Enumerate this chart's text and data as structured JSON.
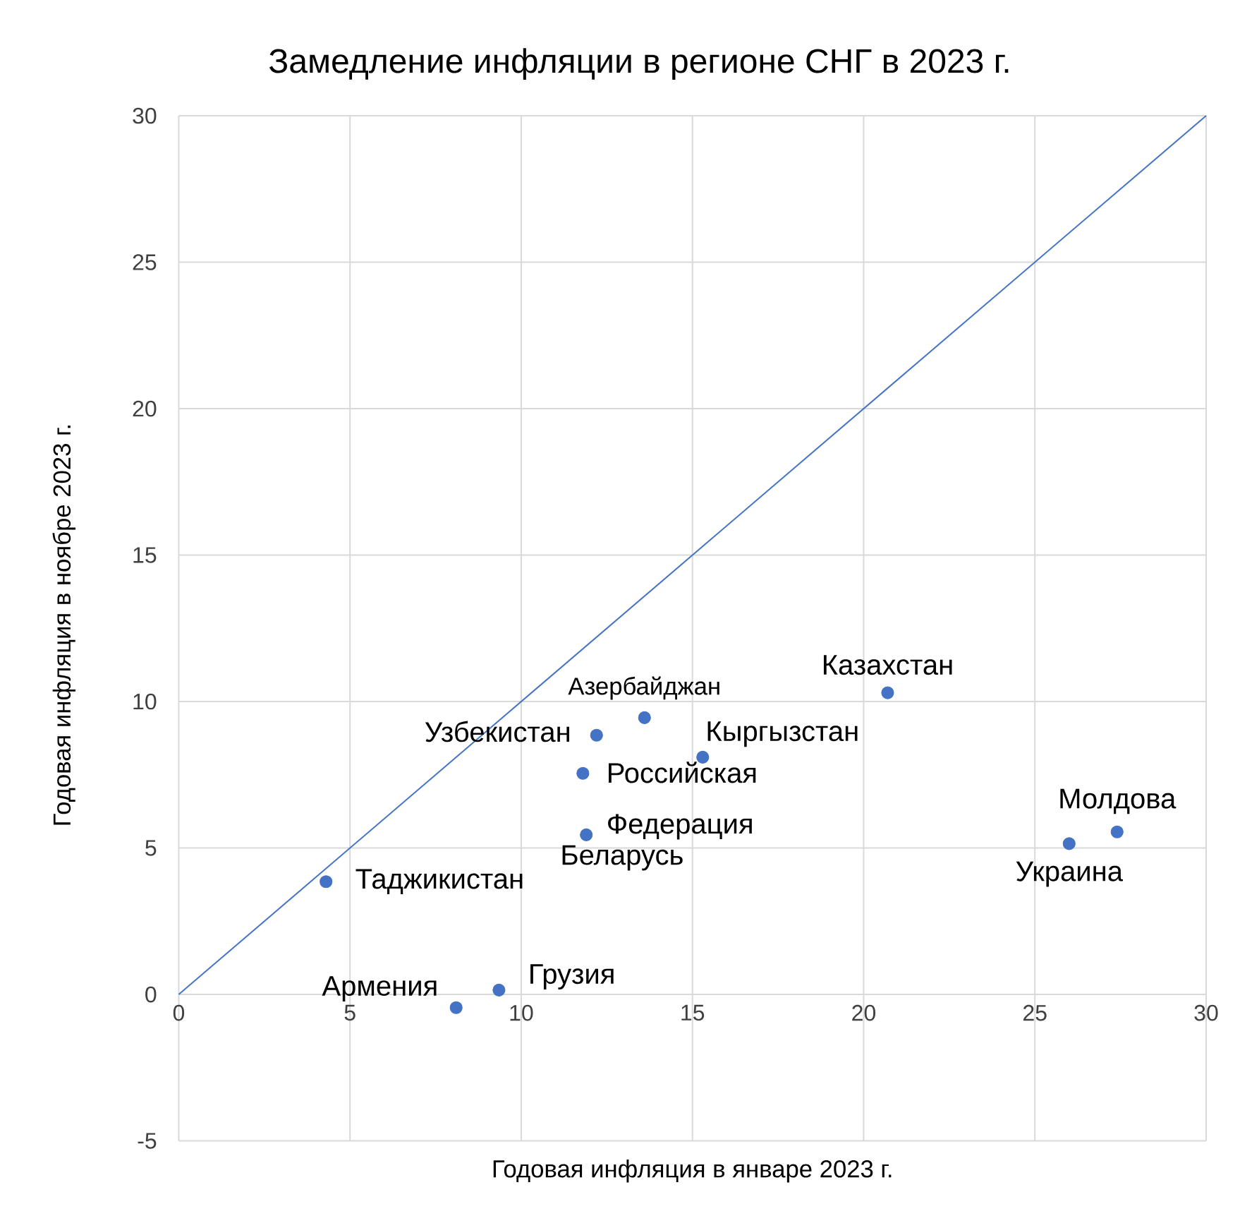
{
  "chart_data": {
    "type": "scatter",
    "title": "Замедление инфляции в регионе СНГ в 2023 г.",
    "xlabel": "Годовая инфляция в январе 2023 г.",
    "ylabel": "Годовая инфляция в ноябре 2023 г.",
    "xlim": [
      0,
      30
    ],
    "ylim": [
      -5,
      30
    ],
    "xticks": [
      0,
      5,
      10,
      15,
      20,
      25,
      30
    ],
    "yticks": [
      -5,
      0,
      5,
      10,
      15,
      20,
      25,
      30
    ],
    "grid": true,
    "marker": "circle",
    "series": [
      {
        "color": "#4472c4",
        "x": [
          4.3,
          8.1,
          9.35,
          12.2,
          13.6,
          11.8,
          11.9,
          15.3,
          20.7,
          26.0,
          27.4
        ],
        "values": [
          3.85,
          -0.45,
          0.15,
          8.85,
          9.45,
          7.55,
          5.45,
          8.1,
          10.3,
          5.15,
          5.55
        ]
      },
      {
        "type": "line",
        "color": "#4472c4",
        "marker": "none",
        "x": [
          0,
          30
        ],
        "values": [
          0,
          30
        ]
      }
    ],
    "annotations": [
      {
        "text": "Таджикистан",
        "x": 4.3,
        "y": 3.85
      },
      {
        "text": "Армения",
        "x": 8.1,
        "y": -0.45
      },
      {
        "text": "Грузия",
        "x": 9.35,
        "y": 0.15
      },
      {
        "text": "Узбекистан",
        "x": 12.2,
        "y": 8.85
      },
      {
        "text": "Азербайджан",
        "x": 13.6,
        "y": 9.45
      },
      {
        "text": "Российская Федерация",
        "x": 11.8,
        "y": 7.55
      },
      {
        "text": "Беларусь",
        "x": 11.9,
        "y": 5.45
      },
      {
        "text": "Кыргызстан",
        "x": 15.3,
        "y": 8.1
      },
      {
        "text": "Казахстан",
        "x": 20.7,
        "y": 10.3
      },
      {
        "text": "Украина",
        "x": 26.0,
        "y": 5.15
      },
      {
        "text": "Молдова",
        "x": 27.4,
        "y": 5.55
      }
    ]
  }
}
